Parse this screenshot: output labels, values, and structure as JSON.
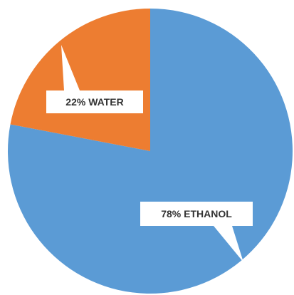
{
  "chart_data": {
    "type": "pie",
    "slices": [
      {
        "label": "78% ETHANOL",
        "name": "ETHANOL",
        "value": 78,
        "color": "#5b9bd5"
      },
      {
        "label": "22% WATER",
        "name": "WATER",
        "value": 22,
        "color": "#ed7d31"
      }
    ],
    "start_angle_deg": 0,
    "direction": "clockwise",
    "legend": "none",
    "title": ""
  }
}
